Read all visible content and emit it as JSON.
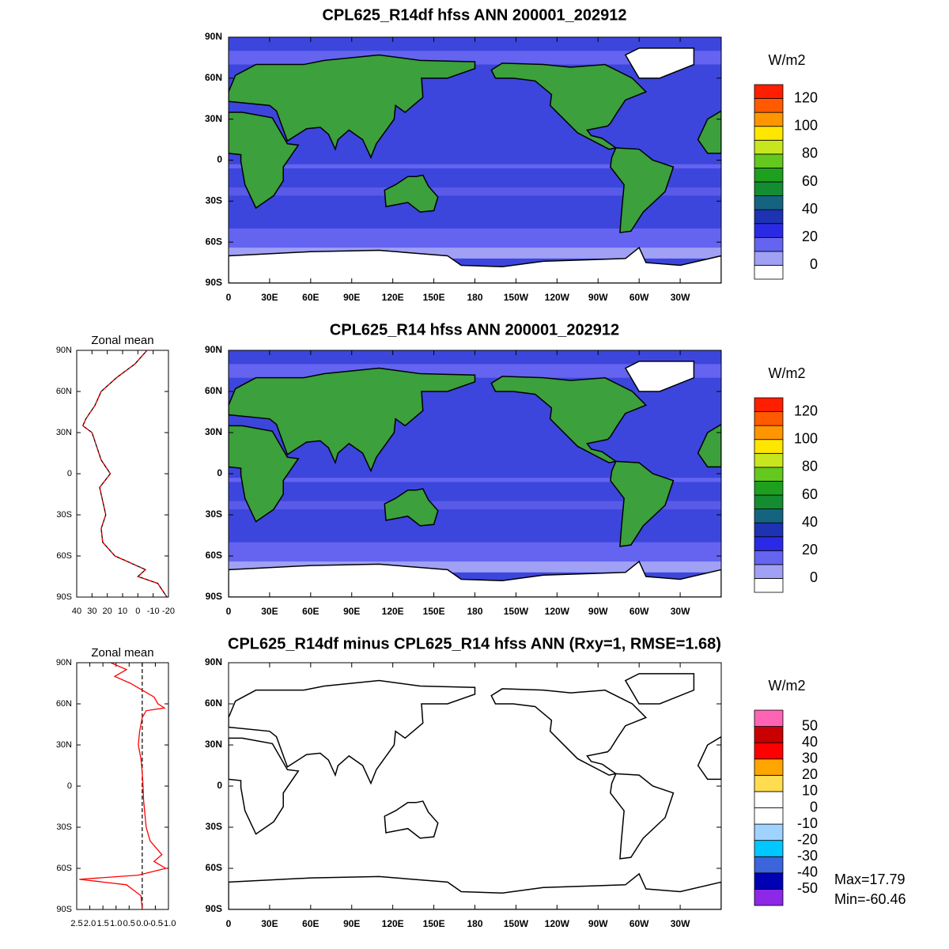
{
  "chart_data": [
    {
      "type": "map",
      "title": "CPL625_R14df hfss ANN 200001_202912",
      "xlim": [
        0,
        360
      ],
      "ylim": [
        -90,
        90
      ],
      "xticks": [
        0,
        {
          "value": 30,
          "label": "30E"
        },
        {
          "value": 60,
          "label": "60E"
        },
        {
          "value": 90,
          "label": "90E"
        },
        {
          "value": 120,
          "label": "120E"
        },
        {
          "value": 150,
          "label": "150E"
        },
        180,
        {
          "value": 210,
          "label": "150W"
        },
        {
          "value": 240,
          "label": "120W"
        },
        {
          "value": 270,
          "label": "90W"
        },
        {
          "value": 300,
          "label": "60W"
        },
        {
          "value": 330,
          "label": "30W"
        }
      ],
      "yticks": [
        {
          "value": -90,
          "label": "90S"
        },
        {
          "value": -60,
          "label": "60S"
        },
        {
          "value": -30,
          "label": "30S"
        },
        0,
        {
          "value": 30,
          "label": "30N"
        },
        {
          "value": 60,
          "label": "60N"
        },
        {
          "value": 90,
          "label": "90N"
        }
      ],
      "colorbar": {
        "title": "W/m2",
        "ticks": [
          0,
          20,
          40,
          60,
          80,
          100,
          120
        ],
        "colors": [
          "#ffffff",
          "#a0a0f5",
          "#6464f0",
          "#2a2ae6",
          "#1e32b4",
          "#14647f",
          "#148c32",
          "#1ea01e",
          "#64c81e",
          "#c8e61e",
          "#ffe600",
          "#ff9600",
          "#ff5a00",
          "#ff1e00"
        ]
      }
    },
    {
      "type": "map",
      "title": "CPL625_R14 hfss ANN 200001_202912",
      "xlim": [
        0,
        360
      ],
      "ylim": [
        -90,
        90
      ],
      "xticks": [
        0,
        {
          "value": 30,
          "label": "30E"
        },
        {
          "value": 60,
          "label": "60E"
        },
        {
          "value": 90,
          "label": "90E"
        },
        {
          "value": 120,
          "label": "120E"
        },
        {
          "value": 150,
          "label": "150E"
        },
        180,
        {
          "value": 210,
          "label": "150W"
        },
        {
          "value": 240,
          "label": "120W"
        },
        {
          "value": 270,
          "label": "90W"
        },
        {
          "value": 300,
          "label": "60W"
        },
        {
          "value": 330,
          "label": "30W"
        }
      ],
      "yticks": [
        {
          "value": -90,
          "label": "90S"
        },
        {
          "value": -60,
          "label": "60S"
        },
        {
          "value": -30,
          "label": "30S"
        },
        0,
        {
          "value": 30,
          "label": "30N"
        },
        {
          "value": 60,
          "label": "60N"
        },
        {
          "value": 90,
          "label": "90N"
        }
      ],
      "colorbar": {
        "title": "W/m2",
        "ticks": [
          0,
          20,
          40,
          60,
          80,
          100,
          120
        ],
        "colors": [
          "#ffffff",
          "#a0a0f5",
          "#6464f0",
          "#2a2ae6",
          "#1e32b4",
          "#14647f",
          "#148c32",
          "#1ea01e",
          "#64c81e",
          "#c8e61e",
          "#ffe600",
          "#ff9600",
          "#ff5a00",
          "#ff1e00"
        ]
      }
    },
    {
      "type": "line",
      "title": "Zonal mean",
      "y": [
        90,
        80,
        70,
        60,
        50,
        40,
        35,
        30,
        20,
        10,
        0,
        -10,
        -20,
        -30,
        -40,
        -50,
        -60,
        -70,
        -75,
        -80,
        -90
      ],
      "series": [
        {
          "color": "#000000",
          "values": [
            -6,
            2,
            14,
            24,
            28,
            34,
            36,
            30,
            27,
            24,
            18,
            25,
            23,
            21,
            24,
            23,
            15,
            -5,
            0,
            -13,
            -19
          ]
        },
        {
          "color": "#ff0000",
          "dashed": true,
          "values": [
            -6,
            2,
            14,
            24,
            28,
            34,
            36,
            30,
            27,
            24,
            18,
            25,
            23,
            21,
            24,
            23,
            15,
            -5,
            0,
            -13,
            -19
          ]
        }
      ],
      "xlim": [
        40,
        -20
      ],
      "xticks": [
        40,
        30,
        20,
        10,
        0,
        -10,
        -20
      ],
      "ylim": [
        -90,
        90
      ],
      "yticks": [
        {
          "value": -90,
          "label": "90S"
        },
        {
          "value": -60,
          "label": "60S"
        },
        {
          "value": -30,
          "label": "30S"
        },
        0,
        {
          "value": 30,
          "label": "30N"
        },
        {
          "value": 60,
          "label": "60N"
        },
        {
          "value": 90,
          "label": "90N"
        }
      ]
    },
    {
      "type": "map",
      "title": "CPL625_R14df minus CPL625_R14 hfss ANN (Rxy=1, RMSE=1.68)",
      "xlim": [
        0,
        360
      ],
      "ylim": [
        -90,
        90
      ],
      "xticks": [
        0,
        {
          "value": 30,
          "label": "30E"
        },
        {
          "value": 60,
          "label": "60E"
        },
        {
          "value": 90,
          "label": "90E"
        },
        {
          "value": 120,
          "label": "120E"
        },
        {
          "value": 150,
          "label": "150E"
        },
        180,
        {
          "value": 210,
          "label": "150W"
        },
        {
          "value": 240,
          "label": "120W"
        },
        {
          "value": 270,
          "label": "90W"
        },
        {
          "value": 300,
          "label": "60W"
        },
        {
          "value": 330,
          "label": "30W"
        }
      ],
      "yticks": [
        {
          "value": -90,
          "label": "90S"
        },
        {
          "value": -60,
          "label": "60S"
        },
        {
          "value": -30,
          "label": "30S"
        },
        0,
        {
          "value": 30,
          "label": "30N"
        },
        {
          "value": 60,
          "label": "60N"
        },
        {
          "value": 90,
          "label": "90N"
        }
      ],
      "colorbar": {
        "title": "W/m2",
        "ticks": [
          -50,
          -40,
          -30,
          -20,
          -10,
          0,
          10,
          20,
          30,
          40,
          50
        ],
        "colors": [
          "#8c28e6",
          "#0000b4",
          "#3c64dc",
          "#00c8ff",
          "#a0d2ff",
          "#ffffff",
          "#ffffff",
          "#ffdc50",
          "#ffa500",
          "#ff0000",
          "#c80000",
          "#ff64b4"
        ]
      },
      "annotations": [
        "Max=17.79",
        "Min=-60.46"
      ]
    },
    {
      "type": "line",
      "title": "Zonal mean",
      "y": [
        90,
        85,
        80,
        75,
        70,
        65,
        60,
        57,
        55,
        50,
        40,
        30,
        20,
        10,
        0,
        -10,
        -20,
        -30,
        -40,
        -50,
        -55,
        -60,
        -65,
        -68,
        -72,
        -80,
        -90
      ],
      "series": [
        {
          "color": "#ff0000",
          "values": [
            1.2,
            0.6,
            1.05,
            0.45,
            0,
            -0.45,
            -0.6,
            -0.85,
            -0.15,
            0,
            0.1,
            0.15,
            0.05,
            0,
            -0.03,
            -0.05,
            -0.1,
            -0.15,
            -0.3,
            -0.75,
            -0.45,
            -0.9,
            0.15,
            2.4,
            0.6,
            0.05,
            0
          ]
        }
      ],
      "zero_line": true,
      "xlim": [
        2.5,
        -1.0
      ],
      "xticks": [
        2.5,
        {
          "value": 2,
          "label": "2.0"
        },
        1.5,
        {
          "value": 1,
          "label": "1.0"
        },
        0.5,
        {
          "value": 0,
          "label": "0.0"
        },
        -0.5,
        {
          "value": -1,
          "label": "-1.0"
        }
      ],
      "ylim": [
        -90,
        90
      ],
      "yticks": [
        {
          "value": -90,
          "label": "90S"
        },
        {
          "value": -60,
          "label": "60S"
        },
        {
          "value": -30,
          "label": "30S"
        },
        0,
        {
          "value": 30,
          "label": "30N"
        },
        {
          "value": 60,
          "label": "60N"
        },
        {
          "value": 90,
          "label": "90N"
        }
      ]
    }
  ]
}
